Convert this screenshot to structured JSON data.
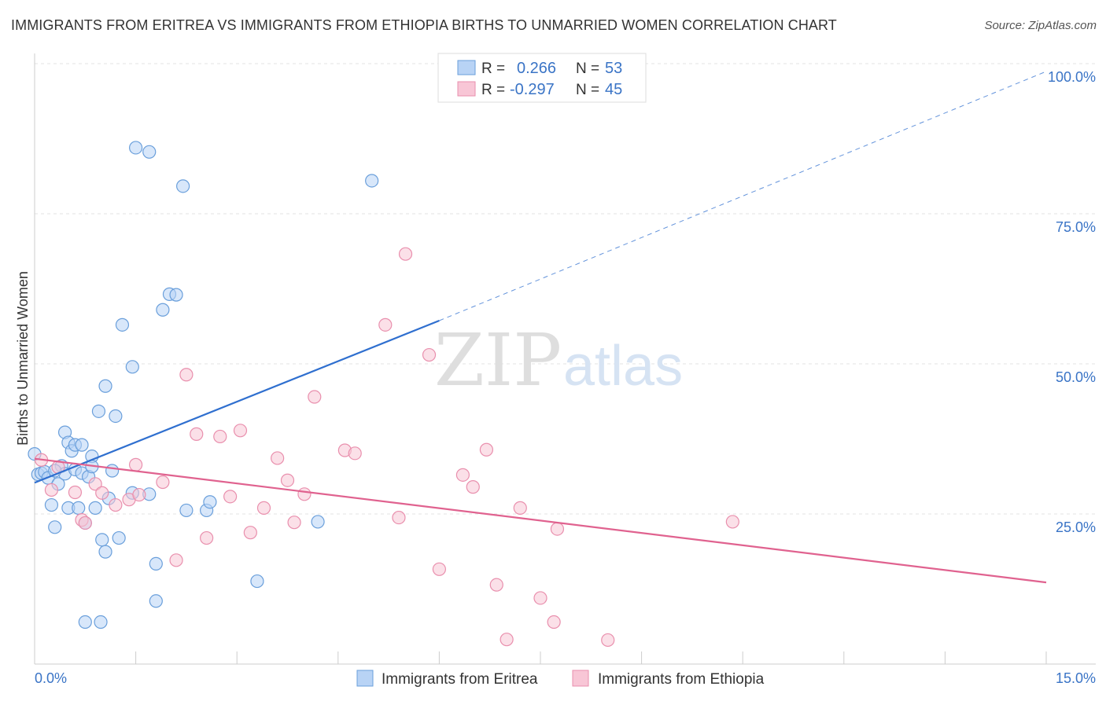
{
  "title": "IMMIGRANTS FROM ERITREA VS IMMIGRANTS FROM ETHIOPIA BIRTHS TO UNMARRIED WOMEN CORRELATION CHART",
  "source": "Source: ZipAtlas.com",
  "watermark": {
    "zip": "ZIP",
    "atlas": "atlas"
  },
  "stats": {
    "r_label": "R =",
    "n_label": "N =",
    "eritrea": {
      "r": "0.266",
      "n": "53"
    },
    "ethiopia": {
      "r": "-0.297",
      "n": "45"
    }
  },
  "colors": {
    "eritrea_fill": "#b8d3f5",
    "eritrea_stroke": "#6a9fdb",
    "eritrea_line": "#2f6fcf",
    "ethiopia_fill": "#f8c6d6",
    "ethiopia_stroke": "#e98fad",
    "ethiopia_line": "#e0628f",
    "tick_text": "#3a74c6",
    "grid": "#e3e3e3"
  },
  "chart_data": {
    "type": "scatter",
    "xlabel": "",
    "ylabel": "Births to Unmarried Women",
    "xlim": [
      0,
      15
    ],
    "ylim": [
      0,
      100
    ],
    "x_tick_labels": [
      "0.0%",
      "15.0%"
    ],
    "y_ticks": [
      25,
      50,
      75,
      100
    ],
    "y_tick_labels": [
      "25.0%",
      "50.0%",
      "75.0%",
      "100.0%"
    ],
    "grid": true,
    "legend_position": "bottom-center",
    "series": [
      {
        "name": "Immigrants from Eritrea",
        "trend": {
          "x0": 0,
          "y0": 30.2,
          "x1": 6.0,
          "y1": 57.2,
          "dashed_to_x": 15,
          "dashed_to_y": 98.7
        },
        "points": [
          [
            0.0,
            35.0
          ],
          [
            0.05,
            31.6
          ],
          [
            0.1,
            31.8
          ],
          [
            0.15,
            32.0
          ],
          [
            0.2,
            31.0
          ],
          [
            0.25,
            26.5
          ],
          [
            0.3,
            22.8
          ],
          [
            0.35,
            30.0
          ],
          [
            0.4,
            33.0
          ],
          [
            0.45,
            31.7
          ],
          [
            0.45,
            38.6
          ],
          [
            0.5,
            26.0
          ],
          [
            0.5,
            36.9
          ],
          [
            0.55,
            35.5
          ],
          [
            0.6,
            32.4
          ],
          [
            0.6,
            36.5
          ],
          [
            0.65,
            26.0
          ],
          [
            0.7,
            31.8
          ],
          [
            0.7,
            36.5
          ],
          [
            0.8,
            31.2
          ],
          [
            0.85,
            34.6
          ],
          [
            0.85,
            32.9
          ],
          [
            0.9,
            26.0
          ],
          [
            0.95,
            42.1
          ],
          [
            1.0,
            20.7
          ],
          [
            1.05,
            46.3
          ],
          [
            1.05,
            18.7
          ],
          [
            1.1,
            27.6
          ],
          [
            1.15,
            32.2
          ],
          [
            1.2,
            41.3
          ],
          [
            1.25,
            21.0
          ],
          [
            1.3,
            56.5
          ],
          [
            1.45,
            49.5
          ],
          [
            1.45,
            28.5
          ],
          [
            1.5,
            86.0
          ],
          [
            1.7,
            85.3
          ],
          [
            1.8,
            16.7
          ],
          [
            1.8,
            10.5
          ],
          [
            1.9,
            59.0
          ],
          [
            2.0,
            61.6
          ],
          [
            2.1,
            61.5
          ],
          [
            2.2,
            79.6
          ],
          [
            2.25,
            25.6
          ],
          [
            2.55,
            25.6
          ],
          [
            2.6,
            27.0
          ],
          [
            3.3,
            13.8
          ],
          [
            4.2,
            23.7
          ],
          [
            5.0,
            80.5
          ],
          [
            0.75,
            7.0
          ],
          [
            0.98,
            7.0
          ],
          [
            0.75,
            23.5
          ],
          [
            0.3,
            32.2
          ],
          [
            1.7,
            28.3
          ]
        ]
      },
      {
        "name": "Immigrants from Ethiopia",
        "trend": {
          "x0": 0,
          "y0": 34.2,
          "x1": 15,
          "y1": 13.6
        },
        "points": [
          [
            0.1,
            34.0
          ],
          [
            0.25,
            29.0
          ],
          [
            0.35,
            32.8
          ],
          [
            0.6,
            28.6
          ],
          [
            0.7,
            24.0
          ],
          [
            0.75,
            23.5
          ],
          [
            0.9,
            30.0
          ],
          [
            1.0,
            28.5
          ],
          [
            1.2,
            26.5
          ],
          [
            1.4,
            27.4
          ],
          [
            1.5,
            33.2
          ],
          [
            1.55,
            28.2
          ],
          [
            1.9,
            30.3
          ],
          [
            2.1,
            17.3
          ],
          [
            2.25,
            48.2
          ],
          [
            2.4,
            38.3
          ],
          [
            2.55,
            21.0
          ],
          [
            2.75,
            37.9
          ],
          [
            2.9,
            27.9
          ],
          [
            3.05,
            38.9
          ],
          [
            3.2,
            21.9
          ],
          [
            3.4,
            26.0
          ],
          [
            3.6,
            34.3
          ],
          [
            3.75,
            30.6
          ],
          [
            3.85,
            23.6
          ],
          [
            4.0,
            28.3
          ],
          [
            4.15,
            44.5
          ],
          [
            4.6,
            35.6
          ],
          [
            4.75,
            35.1
          ],
          [
            5.2,
            56.5
          ],
          [
            5.4,
            24.4
          ],
          [
            5.5,
            68.3
          ],
          [
            5.85,
            51.5
          ],
          [
            6.0,
            15.8
          ],
          [
            6.35,
            31.5
          ],
          [
            6.5,
            29.5
          ],
          [
            6.7,
            35.7
          ],
          [
            6.85,
            13.2
          ],
          [
            7.0,
            4.1
          ],
          [
            7.2,
            26.0
          ],
          [
            7.5,
            11.0
          ],
          [
            7.7,
            7.0
          ],
          [
            7.75,
            22.5
          ],
          [
            8.5,
            4.0
          ],
          [
            10.35,
            23.7
          ]
        ]
      }
    ]
  },
  "legend": {
    "eritrea": "Immigrants from Eritrea",
    "ethiopia": "Immigrants from Ethiopia"
  }
}
